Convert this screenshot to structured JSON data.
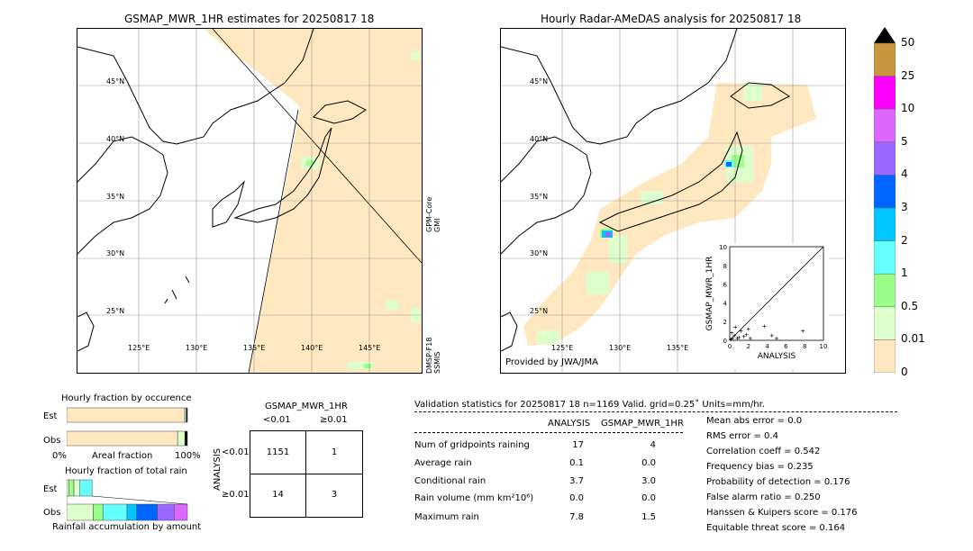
{
  "left_map": {
    "title": "GSMAP_MWR_1HR estimates for 20250817 18",
    "lat_labels": [
      "45°N",
      "40°N",
      "35°N",
      "30°N",
      "25°N"
    ],
    "lon_labels": [
      "125°E",
      "130°E",
      "135°E",
      "140°E",
      "145°E"
    ],
    "swath_label_1": "GPM-Core GMI",
    "swath_label_2": "DMSP-F18 SSMIS"
  },
  "right_map": {
    "title": "Hourly Radar-AMeDAS analysis for 20250817 18",
    "lat_labels": [
      "45°N",
      "40°N",
      "35°N",
      "30°N",
      "25°N"
    ],
    "lon_labels": [
      "125°E",
      "130°E",
      "135°E"
    ],
    "credit": "Provided by JWA/JMA"
  },
  "colorbar": {
    "labels": [
      "50",
      "25",
      "10",
      "5",
      "4",
      "3",
      "2",
      "1",
      "0.5",
      "0.01",
      "0"
    ],
    "colors": [
      "#c8963c",
      "#ff00ff",
      "#dd66ff",
      "#9966ff",
      "#0066ff",
      "#00c8ff",
      "#66ffff",
      "#99ff88",
      "#ddffcc",
      "#ffe8c0"
    ]
  },
  "chart_data": [
    {
      "type": "scatter",
      "title": "",
      "xlabel": "ANALYSIS",
      "ylabel": "GSMAP_MWR_1HR",
      "xlim": [
        0,
        10
      ],
      "ylim": [
        0,
        10
      ],
      "xticks": [
        "0",
        "2",
        "4",
        "6",
        "8",
        "10"
      ],
      "yticks": [
        "0",
        "2",
        "4",
        "6",
        "8",
        "10"
      ],
      "points": [
        [
          0.1,
          0.1
        ],
        [
          0.3,
          0.2
        ],
        [
          0.5,
          0.5
        ],
        [
          0.8,
          0.2
        ],
        [
          1.0,
          0.3
        ],
        [
          1.2,
          1.0
        ],
        [
          1.5,
          0.4
        ],
        [
          2.0,
          1.2
        ],
        [
          2.2,
          0.2
        ],
        [
          3.7,
          1.5
        ],
        [
          4.5,
          0.5
        ],
        [
          5.0,
          0.2
        ],
        [
          7.8,
          1.0
        ],
        [
          0.2,
          0.8
        ],
        [
          0.6,
          1.4
        ],
        [
          1.8,
          0.6
        ]
      ]
    },
    {
      "type": "bar",
      "title": "Hourly fraction by occurence",
      "categories": [
        "Est",
        "Obs"
      ],
      "series": [
        {
          "values": [
            0.978,
            0.919
          ]
        },
        {
          "values": [
            0.012,
            0.06
          ]
        },
        {
          "values": [
            0.01,
            0.021
          ]
        }
      ],
      "xlabel": "Areal fraction",
      "xticks": [
        "0%",
        "100%"
      ]
    },
    {
      "type": "bar",
      "title": "Hourly fraction of total rain",
      "xlabel": "Rainfall accumulation by amount",
      "est_segments": [
        {
          "color": "#ddffcc",
          "value": 0.02
        },
        {
          "color": "#99ff88",
          "value": 0.04
        },
        {
          "color": "#ddffcc",
          "value": 0.05
        },
        {
          "color": "#66ffff",
          "value": 0.1
        }
      ],
      "obs_segments": [
        {
          "color": "#ddffcc",
          "value": 0.22
        },
        {
          "color": "#99ff88",
          "value": 0.08
        },
        {
          "color": "#66ffff",
          "value": 0.2
        },
        {
          "color": "#00c8ff",
          "value": 0.08
        },
        {
          "color": "#0066ff",
          "value": 0.17
        },
        {
          "color": "#9966ff",
          "value": 0.14
        },
        {
          "color": "#dd66ff",
          "value": 0.11
        }
      ]
    }
  ],
  "contingency": {
    "title": "GSMAP_MWR_1HR",
    "col_lt": "<0.01",
    "col_ge": "≥0.01",
    "row_lt": "<0.01",
    "row_ge": "≥0.01",
    "axis_label": "ANALYSIS",
    "a": "1151",
    "b": "1",
    "c": "14",
    "d": "3"
  },
  "validation": {
    "header": "Validation statistics for 20250817 18  n=1169 Valid. grid=0.25˚ Units=mm/hr.",
    "col_analysis": "ANALYSIS",
    "col_gsmap": "GSMAP_MWR_1HR",
    "rows": [
      {
        "label": "Num of gridpoints raining",
        "analysis": "17",
        "gsmap": "4"
      },
      {
        "label": "Average rain",
        "analysis": "0.1",
        "gsmap": "0.0"
      },
      {
        "label": "Conditional rain",
        "analysis": "3.7",
        "gsmap": "3.0"
      },
      {
        "label": "Rain volume (mm km²10⁶)",
        "analysis": "0.0",
        "gsmap": "0.0"
      },
      {
        "label": "Maximum rain",
        "analysis": "7.8",
        "gsmap": "1.5"
      }
    ],
    "scores": [
      "Mean abs error =    0.0",
      "RMS error =    0.4",
      "Correlation coeff =  0.542",
      "Frequency bias =  0.235",
      "Probability of detection =  0.176",
      "False alarm ratio =  0.250",
      "Hanssen & Kuipers score =  0.176",
      "Equitable threat score =  0.164"
    ]
  }
}
